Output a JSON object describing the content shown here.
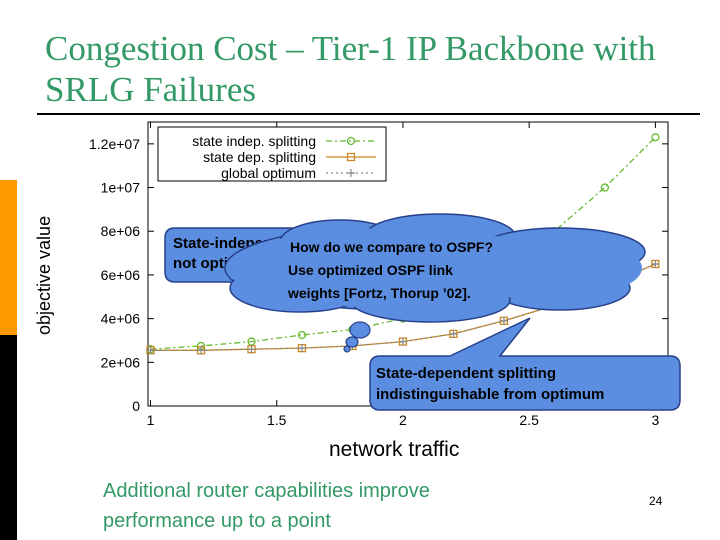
{
  "slide": {
    "title": "Congestion Cost – Tier-1 IP Backbone with SRLG Failures",
    "subtitle": "Additional router capabilities improve performance up to a point",
    "page_number": "24"
  },
  "colors": {
    "title": "#339966",
    "sidebar_orange": "#ff9900",
    "callout_fill": "#5b8ee0",
    "callout_border": "#27408b"
  },
  "callouts": [
    {
      "text": "State-independent splitting not optimal"
    },
    {
      "text": "How do we compare to OSPF? Use optimized OSPF link weights [Fortz, Thorup ’02]."
    },
    {
      "text": "State-dependent splitting indistinguishable from optimum"
    }
  ],
  "chart_data": {
    "type": "line",
    "xlabel": "network traffic",
    "ylabel": "objective value",
    "xlim": [
      0.99,
      3.05
    ],
    "ylim": [
      0,
      13000000
    ],
    "xticks": [
      1,
      1.5,
      2,
      2.5,
      3
    ],
    "xtick_labels": [
      "1",
      "1.5",
      "2",
      "2.5",
      "3"
    ],
    "yticks": [
      0,
      2000000,
      4000000,
      6000000,
      8000000,
      10000000,
      12000000
    ],
    "ytick_labels": [
      "0",
      "2e+06",
      "4e+06",
      "6e+06",
      "8e+06",
      "1e+07",
      "1.2e+07"
    ],
    "legend_position": "top-left",
    "series": [
      {
        "name": "state indep. splitting",
        "color": "#66bb33",
        "marker": "circle",
        "dash": "6,3,2,3",
        "x": [
          1,
          1.2,
          1.4,
          1.6,
          1.8,
          2,
          2.2,
          2.4,
          2.6,
          2.8,
          3
        ],
        "y": [
          2600000,
          2750000,
          2950000,
          3250000,
          3500000,
          4000000,
          5000000,
          6700000,
          8000000,
          10000000,
          12300000
        ]
      },
      {
        "name": "state dep. splitting",
        "color": "#cc8822",
        "marker": "square",
        "dash": "",
        "x": [
          1,
          1.2,
          1.4,
          1.6,
          1.8,
          2,
          2.2,
          2.4,
          2.6,
          2.8,
          3
        ],
        "y": [
          2550000,
          2550000,
          2600000,
          2650000,
          2750000,
          2950000,
          3300000,
          3900000,
          4600000,
          5500000,
          6500000
        ]
      },
      {
        "name": "global optimum",
        "color": "#888888",
        "marker": "plus",
        "dash": "2,3",
        "x": [
          1,
          1.2,
          1.4,
          1.6,
          1.8,
          2,
          2.2,
          2.4,
          2.6,
          2.8,
          3
        ],
        "y": [
          2550000,
          2550000,
          2600000,
          2650000,
          2750000,
          2950000,
          3300000,
          3900000,
          4600000,
          5500000,
          6500000
        ]
      }
    ]
  }
}
